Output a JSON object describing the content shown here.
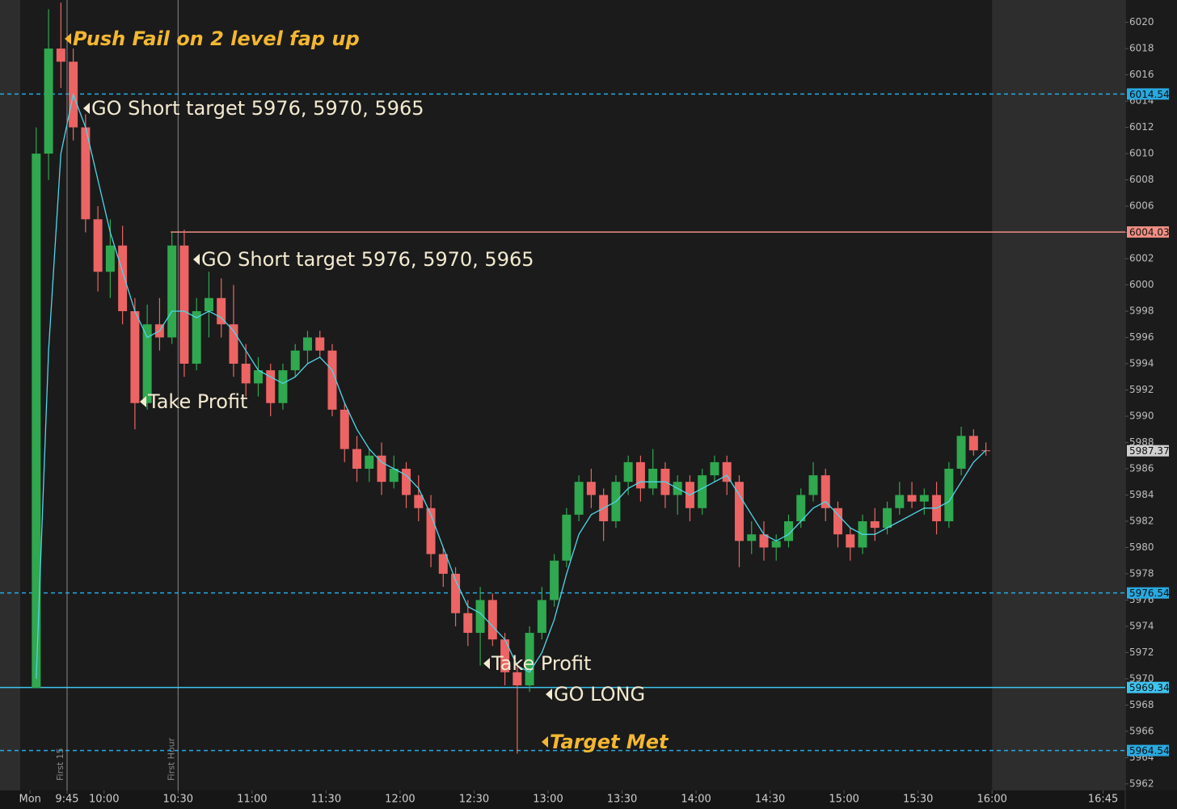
{
  "chart_data": {
    "type": "candlestick",
    "x": [
      "9:30",
      "9:35",
      "9:40",
      "9:45",
      "9:50",
      "9:55",
      "10:00",
      "10:05",
      "10:10",
      "10:15",
      "10:20",
      "10:25",
      "10:30",
      "10:35",
      "10:40",
      "10:45",
      "10:50",
      "10:55",
      "11:00",
      "11:05",
      "11:10",
      "11:15",
      "11:20",
      "11:25",
      "11:30",
      "11:35",
      "11:40",
      "11:45",
      "11:50",
      "11:55",
      "12:00",
      "12:05",
      "12:10",
      "12:15",
      "12:20",
      "12:25",
      "12:30",
      "12:35",
      "12:40",
      "12:45",
      "12:50",
      "12:55",
      "13:00",
      "13:05",
      "13:10",
      "13:15",
      "13:20",
      "13:25",
      "13:30",
      "13:35",
      "13:40",
      "13:45",
      "13:50",
      "13:55",
      "14:00",
      "14:05",
      "14:10",
      "14:15",
      "14:20",
      "14:25",
      "14:30",
      "14:35",
      "14:40",
      "14:45",
      "14:50",
      "14:55",
      "15:00",
      "15:05",
      "15:10",
      "15:15",
      "15:20",
      "15:25",
      "15:30",
      "15:35",
      "15:40",
      "15:45",
      "15:50",
      "15:55"
    ],
    "open": [
      5969.3,
      6010,
      6018,
      6017,
      6012,
      6005,
      6001,
      6003,
      5998,
      5991,
      5997,
      5996,
      6003,
      5994,
      5998,
      5999,
      5997,
      5994,
      5992.5,
      5993.5,
      5991,
      5993.5,
      5995,
      5996,
      5995,
      5990.5,
      5987.5,
      5986,
      5987,
      5985,
      5986,
      5984,
      5983,
      5979.5,
      5978,
      5975,
      5973.5,
      5976,
      5973,
      5970.5,
      5969.5,
      5973.5,
      5976,
      5979,
      5982.5,
      5985,
      5984,
      5982,
      5985,
      5986.5,
      5984.5,
      5986,
      5984,
      5985,
      5983,
      5985.5,
      5986.5,
      5985,
      5980.5,
      5981,
      5980,
      5980.5,
      5982,
      5984,
      5985.5,
      5983,
      5981,
      5980,
      5982,
      5981.5,
      5983,
      5984,
      5983.5,
      5984,
      5982,
      5986,
      5988.5,
      5987.4
    ],
    "high": [
      6012,
      6021,
      6021.5,
      6018,
      6013,
      6006,
      6005,
      6004.5,
      5999,
      5998.5,
      5999,
      6004,
      6004.2,
      5999,
      6001,
      6000.5,
      6000,
      5995.5,
      5994.5,
      5994,
      5994,
      5995.5,
      5996.5,
      5996.5,
      5995.5,
      5991,
      5988.5,
      5987.5,
      5988,
      5987,
      5986.5,
      5985.5,
      5984,
      5980,
      5978.5,
      5976,
      5977,
      5976.5,
      5973.5,
      5971,
      5974,
      5977,
      5979.5,
      5983,
      5985.5,
      5986,
      5984.5,
      5985.5,
      5987,
      5987,
      5987.5,
      5986.5,
      5985.5,
      5985.5,
      5986,
      5987,
      5987,
      5985.5,
      5982,
      5982,
      5981,
      5982.5,
      5984.5,
      5986.5,
      5986,
      5983.5,
      5981.5,
      5982.5,
      5983,
      5983.5,
      5985,
      5985,
      5984.5,
      5985,
      5986.5,
      5989.2,
      5989,
      5988
    ],
    "low": [
      5969.3,
      6008,
      6015,
      6011,
      6004,
      5999.5,
      5999,
      5997,
      5989,
      5990.5,
      5995,
      5995.5,
      5993,
      5993.5,
      5996,
      5996,
      5993,
      5991.5,
      5991.5,
      5990,
      5990.5,
      5993,
      5994,
      5994.5,
      5990,
      5986.5,
      5985,
      5985,
      5984,
      5984.5,
      5983,
      5982,
      5978.5,
      5977,
      5974,
      5972.5,
      5971,
      5972.5,
      5969.5,
      5964.3,
      5969,
      5973,
      5975.5,
      5978.5,
      5982,
      5983,
      5980.5,
      5981.5,
      5984,
      5983.5,
      5984,
      5983,
      5982.5,
      5982,
      5982.5,
      5985,
      5984,
      5978.5,
      5979.5,
      5979,
      5979,
      5980,
      5981.5,
      5983.5,
      5982,
      5980,
      5979,
      5979.5,
      5980.5,
      5981,
      5982.5,
      5983,
      5982.5,
      5981,
      5981.5,
      5985.5,
      5987,
      5987
    ],
    "close": [
      6010,
      6018,
      6017,
      6012,
      6005,
      6001,
      6003,
      5998,
      5991,
      5997,
      5996,
      6003,
      5994,
      5998,
      5999,
      5997,
      5994,
      5992.5,
      5993.5,
      5991,
      5993.5,
      5995,
      5996,
      5995,
      5990.5,
      5987.5,
      5986,
      5987,
      5985,
      5986,
      5984,
      5983,
      5979.5,
      5978,
      5975,
      5973.5,
      5976,
      5973,
      5970.5,
      5969.5,
      5973.5,
      5976,
      5979,
      5982.5,
      5985,
      5984,
      5982,
      5985,
      5986.5,
      5984.5,
      5986,
      5984,
      5985,
      5983,
      5985.5,
      5986.5,
      5985,
      5980.5,
      5981,
      5980,
      5980.5,
      5982,
      5984,
      5985.5,
      5983,
      5981,
      5980,
      5982,
      5981.5,
      5983,
      5984,
      5983.5,
      5984,
      5982,
      5986,
      5988.5,
      5987.4,
      5987.37
    ],
    "up_color": "#2fa84f",
    "down_color": "#ec6464",
    "ma": {
      "color": "#4fd6e8",
      "values": [
        5970,
        5995,
        6010,
        6014.5,
        6012,
        6008,
        6004,
        6001,
        5998,
        5996,
        5996.5,
        5998,
        5998,
        5997.5,
        5998,
        5997.5,
        5996.5,
        5995,
        5993.5,
        5993,
        5992.5,
        5993,
        5994,
        5994.5,
        5993.5,
        5991,
        5989,
        5987.5,
        5986.5,
        5986,
        5985.5,
        5984.5,
        5982.5,
        5980,
        5977.5,
        5975.5,
        5975,
        5974,
        5973,
        5971,
        5970.5,
        5972,
        5974.5,
        5978,
        5981,
        5982.5,
        5983,
        5983.5,
        5984.5,
        5985,
        5985,
        5985,
        5984.5,
        5984,
        5984.5,
        5985,
        5985.5,
        5984,
        5982.5,
        5981,
        5980.5,
        5981,
        5982,
        5983,
        5983.5,
        5982.5,
        5981.5,
        5981,
        5981,
        5981.5,
        5982,
        5982.5,
        5983,
        5983,
        5983.5,
        5985,
        5986.5,
        5987.4
      ]
    },
    "xlim": [
      "9:26",
      "16:54"
    ],
    "xticks": [
      {
        "value": "9:30",
        "label": "Mon"
      },
      "9:45",
      "10:00",
      "10:30",
      "11:00",
      "11:30",
      "12:00",
      "12:30",
      "13:00",
      "13:30",
      "14:00",
      "14:30",
      "15:00",
      "15:30",
      "16:00",
      "16:45"
    ],
    "ylim": [
      5961.5,
      6021.7
    ],
    "yticks": [
      5962,
      5964,
      5966,
      5968,
      5970,
      5972,
      5974,
      5976,
      5978,
      5980,
      5982,
      5984,
      5986,
      5988,
      5990,
      5992,
      5994,
      5996,
      5998,
      6000,
      6002,
      6004,
      6006,
      6008,
      6010,
      6012,
      6014,
      6016,
      6018,
      6020
    ],
    "session_end": "16:00",
    "levels": [
      {
        "value": 6014.54,
        "color": "#29a9e0",
        "dashed": true
      },
      {
        "value": 6004.03,
        "color": "#f08f84",
        "dashed": false,
        "start": "10:27"
      },
      {
        "value": 5976.54,
        "color": "#29a9e0",
        "dashed": true
      },
      {
        "value": 5969.34,
        "color": "#3fc4ef",
        "dashed": false
      },
      {
        "value": 5964.54,
        "color": "#29a9e0",
        "dashed": true
      }
    ],
    "last_price": 5987.37,
    "markers": [
      {
        "x": "9:45",
        "label": "First 15"
      },
      {
        "x": "10:30",
        "label": "First Hour"
      }
    ],
    "annotations": [
      {
        "text": "Push Fail on 2 level fap up",
        "highlight": true
      },
      {
        "text": "GO Short target 5976, 5970, 5965",
        "highlight": false
      },
      {
        "text": "GO Short target 5976, 5970, 5965",
        "highlight": false
      },
      {
        "text": "Take Profit",
        "highlight": false
      },
      {
        "text": "Take Profit",
        "highlight": false
      },
      {
        "text": "GO LONG",
        "highlight": false
      },
      {
        "text": "Target Met",
        "highlight": true
      }
    ]
  }
}
